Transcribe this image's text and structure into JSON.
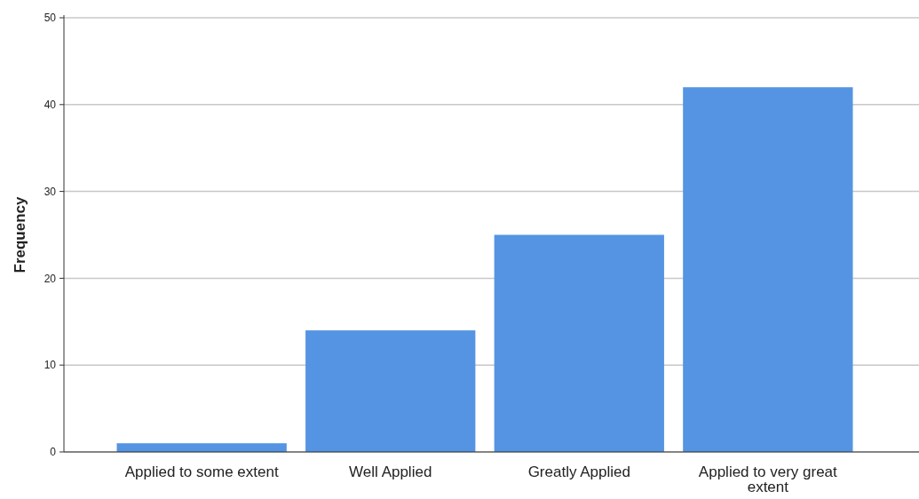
{
  "chart_data": {
    "type": "bar",
    "ylabel": "Frequency",
    "categories": [
      "Applied to some extent",
      "Well Applied",
      "Greatly Applied",
      "Applied to very great extent"
    ],
    "values": [
      1,
      14,
      25,
      42
    ],
    "color": "#5594e3",
    "ylim": [
      0,
      50
    ],
    "yticks": [
      0,
      10,
      20,
      30,
      40,
      50
    ],
    "grid": "y"
  }
}
